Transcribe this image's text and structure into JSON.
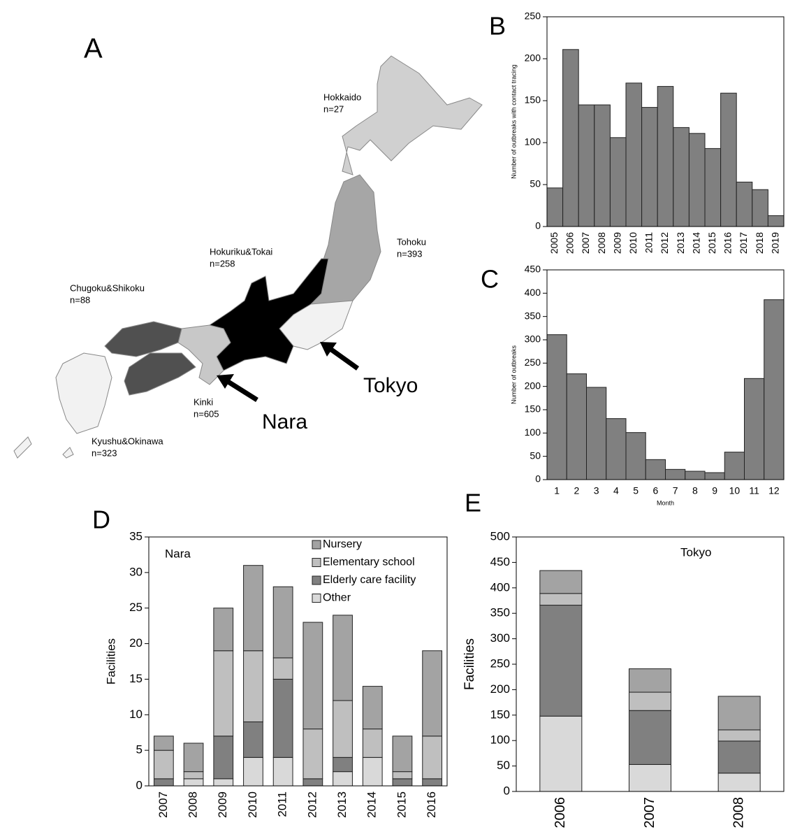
{
  "map": {
    "panel_label": "A",
    "regions": [
      {
        "name": "Hokkaido",
        "count": "n=27"
      },
      {
        "name": "Tohoku",
        "count": "n=393"
      },
      {
        "name": "Hokuriku&Tokai",
        "count": "n=258"
      },
      {
        "name": "Chugoku&Shikoku",
        "count": "n=88"
      },
      {
        "name": "Kinki",
        "count": "n=605"
      },
      {
        "name": "Kyushu&Okinawa",
        "count": "n=323"
      }
    ],
    "callouts": [
      "Nara",
      "Tokyo"
    ]
  },
  "chart_data": [
    {
      "type": "bar",
      "panel_label": "B",
      "ylabel": "Number of outbreaks with contact tracing",
      "categories": [
        "2005",
        "2006",
        "2007",
        "2008",
        "2009",
        "2010",
        "2011",
        "2012",
        "2013",
        "2014",
        "2015",
        "2016",
        "2017",
        "2018",
        "2019"
      ],
      "values": [
        46,
        211,
        145,
        145,
        106,
        171,
        142,
        167,
        118,
        111,
        93,
        159,
        53,
        44,
        13
      ],
      "color": "#808080",
      "ylim": [
        0,
        250
      ],
      "yticks": [
        0,
        50,
        100,
        150,
        200,
        250
      ]
    },
    {
      "type": "bar",
      "panel_label": "C",
      "ylabel": "Number of outbreaks",
      "xlabel": "Month",
      "categories": [
        "1",
        "2",
        "3",
        "4",
        "5",
        "6",
        "7",
        "8",
        "9",
        "10",
        "11",
        "12"
      ],
      "values": [
        311,
        227,
        198,
        131,
        101,
        43,
        22,
        18,
        15,
        59,
        217,
        386
      ],
      "color": "#808080",
      "ylim": [
        0,
        450
      ],
      "yticks": [
        0,
        50,
        100,
        150,
        200,
        250,
        300,
        350,
        400,
        450
      ]
    },
    {
      "type": "stacked_bar",
      "panel_label": "D",
      "ylabel": "Facilities",
      "annotation": "Nara",
      "categories": [
        "2007",
        "2008",
        "2009",
        "2010",
        "2011",
        "2012",
        "2013",
        "2014",
        "2015",
        "2016"
      ],
      "series": [
        {
          "name": "Other",
          "color": "#d9d9d9",
          "values": [
            0,
            1,
            1,
            4,
            4,
            0,
            2,
            4,
            0,
            0
          ]
        },
        {
          "name": "Elderly care facility",
          "color": "#808080",
          "values": [
            1,
            0,
            6,
            5,
            11,
            1,
            2,
            0,
            1,
            1
          ]
        },
        {
          "name": "Elementary school",
          "color": "#bfbfbf",
          "values": [
            4,
            1,
            12,
            10,
            3,
            7,
            8,
            4,
            1,
            6
          ]
        },
        {
          "name": "Nursery",
          "color": "#a3a3a3",
          "values": [
            2,
            4,
            6,
            12,
            10,
            15,
            12,
            6,
            5,
            12
          ]
        }
      ],
      "ylim": [
        0,
        35
      ],
      "yticks": [
        0,
        5,
        10,
        15,
        20,
        25,
        30,
        35
      ],
      "legend": "top-right"
    },
    {
      "type": "stacked_bar",
      "panel_label": "E",
      "ylabel": "Facilities",
      "annotation": "Tokyo",
      "categories": [
        "2006",
        "2007",
        "2008"
      ],
      "series": [
        {
          "color": "#d9d9d9",
          "values": [
            148,
            53,
            36
          ]
        },
        {
          "color": "#808080",
          "values": [
            218,
            106,
            63
          ]
        },
        {
          "color": "#bfbfbf",
          "values": [
            23,
            36,
            22
          ]
        },
        {
          "color": "#a3a3a3",
          "values": [
            45,
            46,
            66
          ]
        }
      ],
      "ylim": [
        0,
        500
      ],
      "yticks": [
        0,
        50,
        100,
        150,
        200,
        250,
        300,
        350,
        400,
        450,
        500
      ]
    }
  ]
}
